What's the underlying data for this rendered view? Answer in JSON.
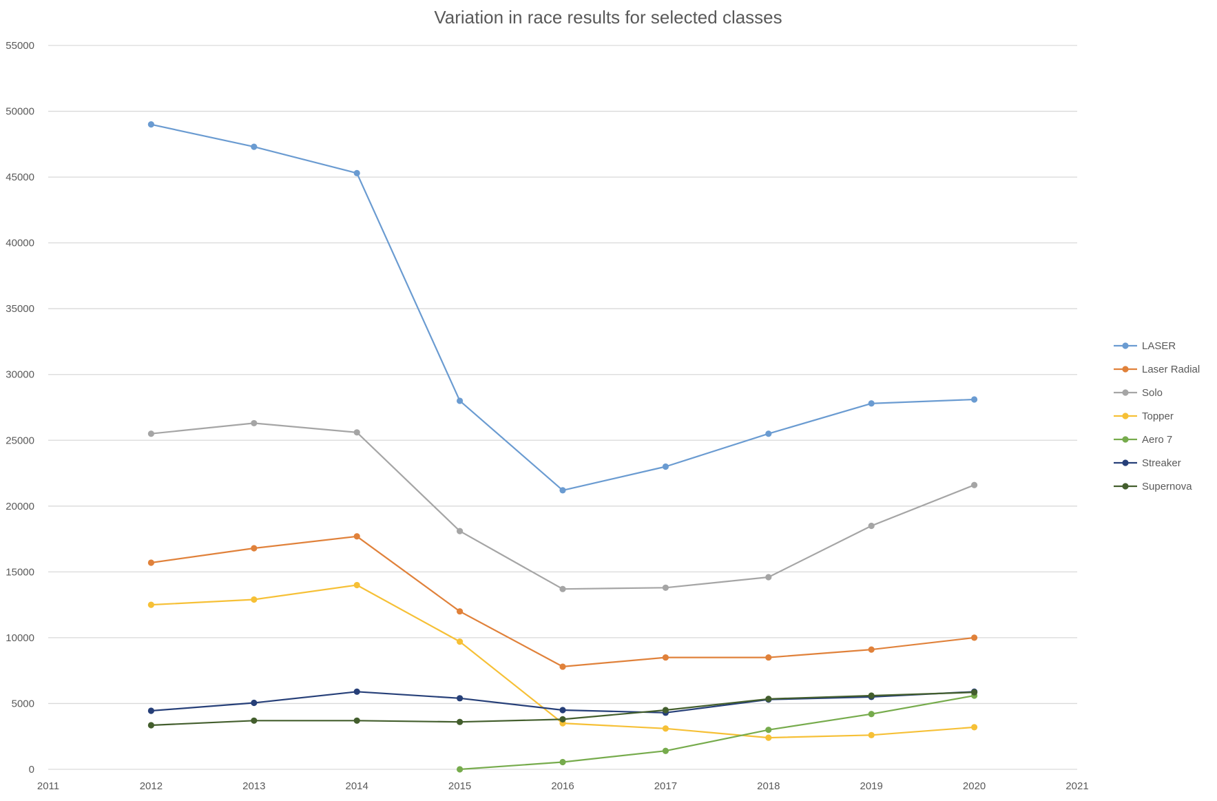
{
  "chart_data": {
    "type": "scatter",
    "title": "Variation in race results for selected classes",
    "xlabel": "",
    "ylabel": "",
    "xlim": [
      2011,
      2021
    ],
    "ylim": [
      0,
      55000
    ],
    "x_ticks": [
      2011,
      2012,
      2013,
      2014,
      2015,
      2016,
      2017,
      2018,
      2019,
      2020,
      2021
    ],
    "y_ticks": [
      0,
      5000,
      10000,
      15000,
      20000,
      25000,
      30000,
      35000,
      40000,
      45000,
      50000,
      55000
    ],
    "grid": "horizontal",
    "legend_position": "right",
    "series": [
      {
        "name": "LASER",
        "color": "#6a9bd1",
        "x": [
          2012,
          2013,
          2014,
          2015,
          2016,
          2017,
          2018,
          2019,
          2020
        ],
        "y": [
          49000,
          47300,
          45300,
          28000,
          21200,
          23000,
          25500,
          27800,
          28100
        ]
      },
      {
        "name": "Laser Radial",
        "color": "#e0813a",
        "x": [
          2012,
          2013,
          2014,
          2015,
          2016,
          2017,
          2018,
          2019,
          2020
        ],
        "y": [
          15700,
          16800,
          17700,
          12000,
          7800,
          8500,
          8500,
          9100,
          10000
        ]
      },
      {
        "name": "Solo",
        "color": "#a5a5a5",
        "x": [
          2012,
          2013,
          2014,
          2015,
          2016,
          2017,
          2018,
          2019,
          2020
        ],
        "y": [
          25500,
          26300,
          25600,
          18100,
          13700,
          13800,
          14600,
          18500,
          21600
        ]
      },
      {
        "name": "Topper",
        "color": "#f6c036",
        "x": [
          2012,
          2013,
          2014,
          2015,
          2016,
          2017,
          2018,
          2019,
          2020
        ],
        "y": [
          12500,
          12900,
          14000,
          9700,
          3500,
          3100,
          2400,
          2600,
          3200
        ]
      },
      {
        "name": "Aero 7",
        "color": "#76ab4c",
        "x": [
          2015,
          2016,
          2017,
          2018,
          2019,
          2020
        ],
        "y": [
          0,
          550,
          1400,
          3000,
          4200,
          5600
        ]
      },
      {
        "name": "Streaker",
        "color": "#263f78",
        "x": [
          2012,
          2013,
          2014,
          2015,
          2016,
          2017,
          2018,
          2019,
          2020
        ],
        "y": [
          4450,
          5050,
          5900,
          5400,
          4500,
          4300,
          5300,
          5500,
          5900
        ]
      },
      {
        "name": "Supernova",
        "color": "#435e2d",
        "x": [
          2012,
          2013,
          2014,
          2015,
          2016,
          2017,
          2018,
          2019,
          2020
        ],
        "y": [
          3350,
          3700,
          3700,
          3600,
          3800,
          4500,
          5350,
          5600,
          5850
        ]
      }
    ]
  }
}
